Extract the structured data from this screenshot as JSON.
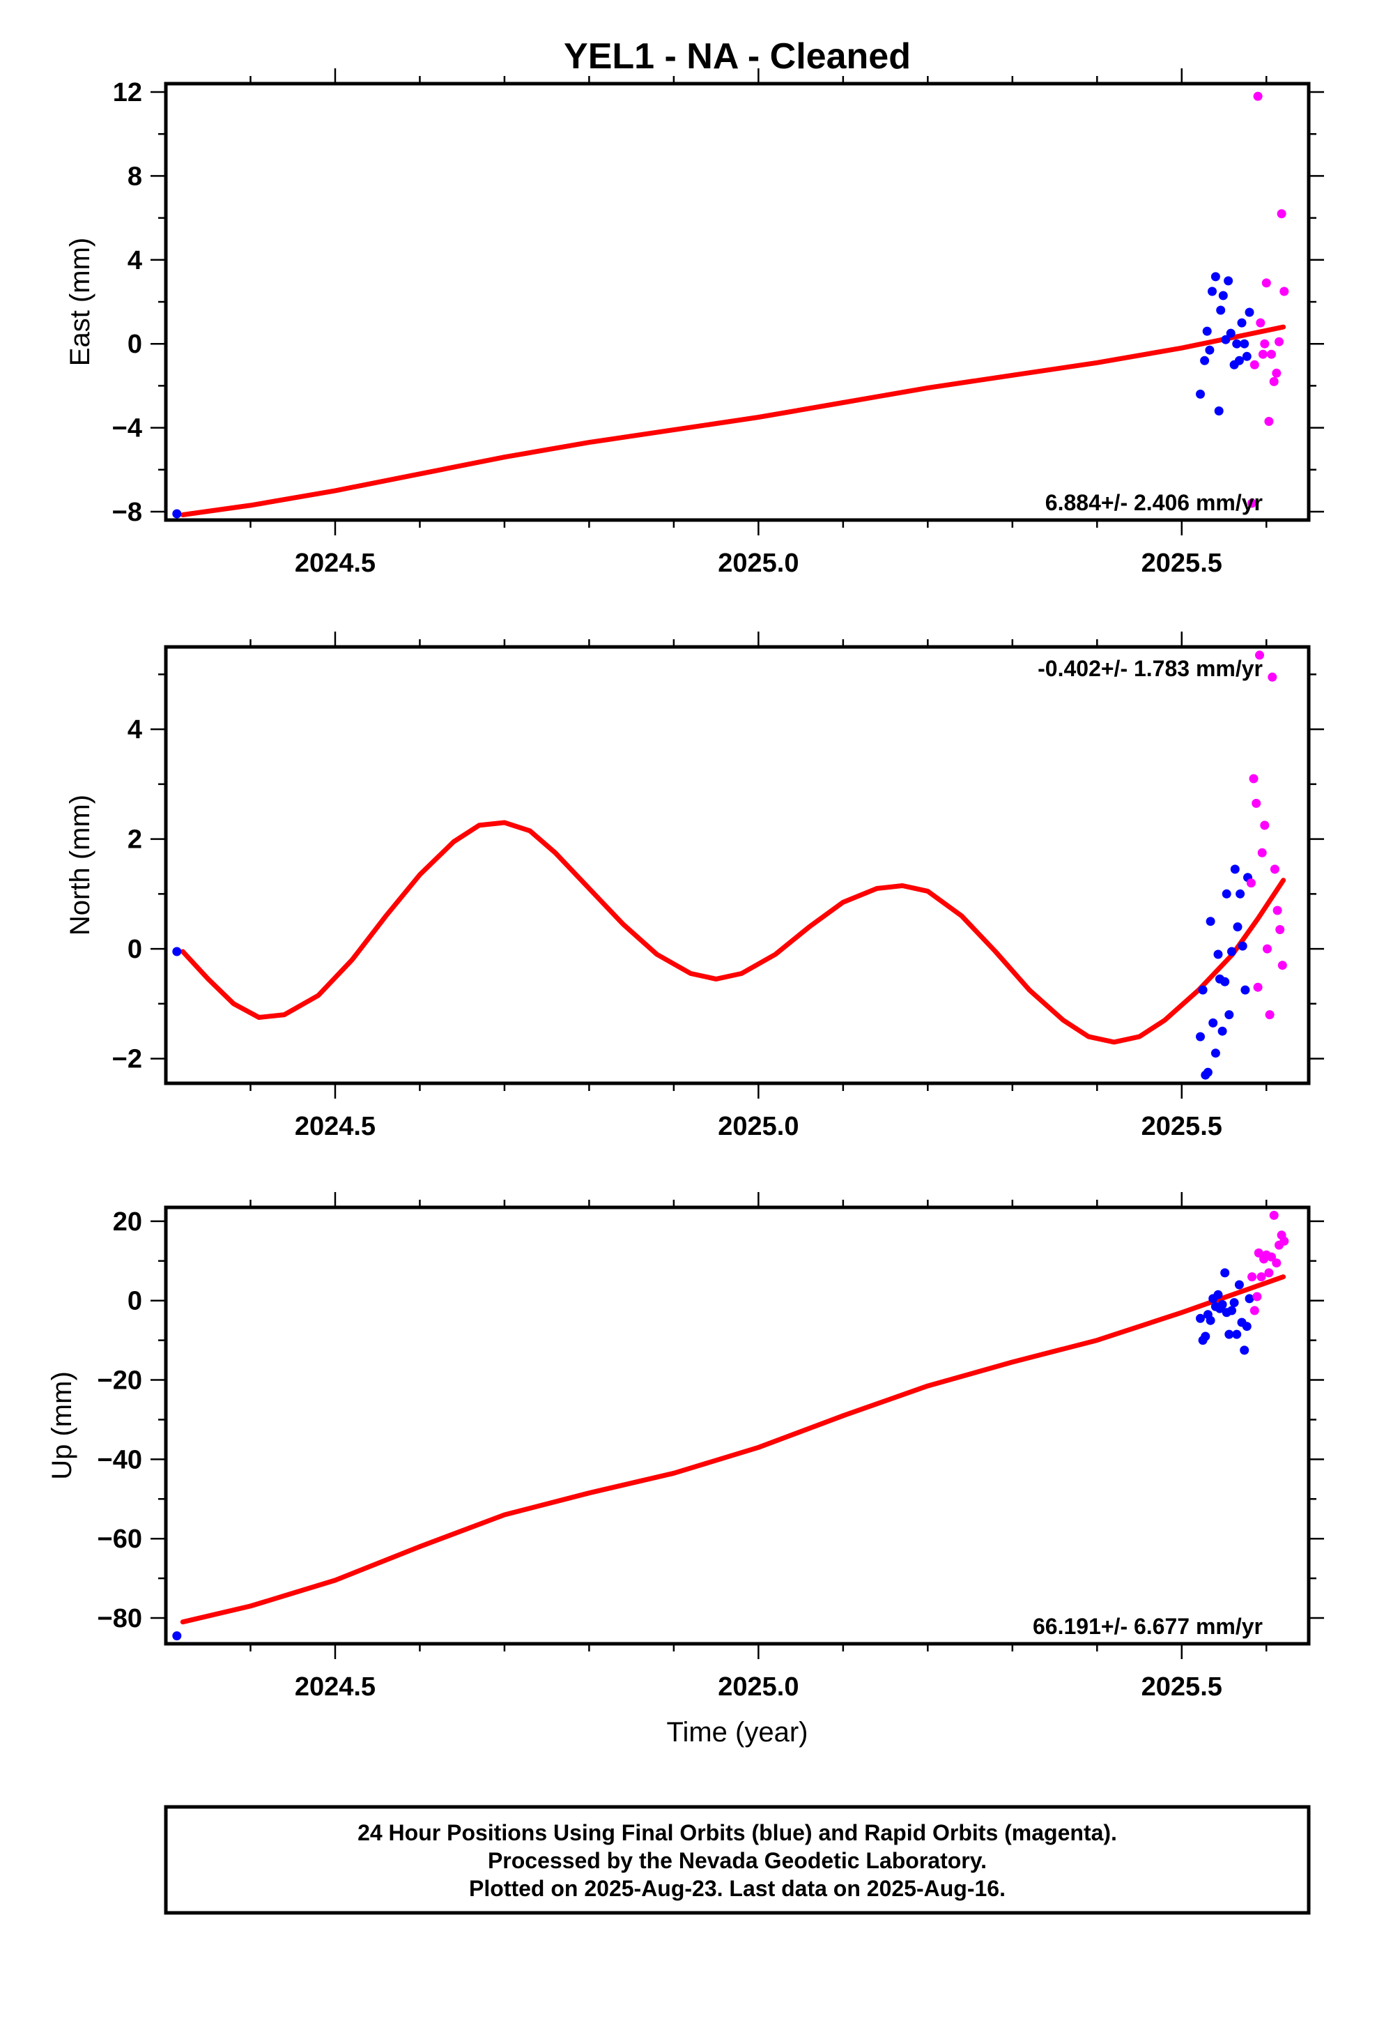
{
  "title": "YEL1  - NA - Cleaned",
  "colors": {
    "final": "#0000ff",
    "rapid": "#ff00ff",
    "model": "#ff0000",
    "axis": "#000000"
  },
  "footer": {
    "lines": [
      "24 Hour Positions Using Final Orbits (blue) and Rapid Orbits (magenta).",
      "Processed by the Nevada Geodetic Laboratory.",
      "Plotted on 2025-Aug-23. Last data on 2025-Aug-16."
    ]
  },
  "chart_data": [
    {
      "type": "scatter",
      "ylabel": "East (mm)",
      "xlabel": "",
      "xlim": [
        2024.3,
        2025.65
      ],
      "ylim": [
        -8.4,
        12.4
      ],
      "xticks": [
        2024.5,
        2025.0,
        2025.5
      ],
      "xtick_labels": [
        "2024.5",
        "2025.0",
        "2025.5"
      ],
      "yticks": [
        -8,
        -4,
        0,
        4,
        8,
        12
      ],
      "ytick_labels": [
        "−8",
        "−4",
        "0",
        "4",
        "8",
        "12"
      ],
      "rate_label": "6.884+/- 2.406 mm/yr",
      "rate_position": "bottom-right",
      "series": [
        {
          "kind": "final",
          "points": [
            [
              2024.313,
              -8.1
            ],
            [
              2025.522,
              -2.4
            ],
            [
              2025.527,
              -0.8
            ],
            [
              2025.53,
              0.6
            ],
            [
              2025.533,
              -0.3
            ],
            [
              2025.536,
              2.5
            ],
            [
              2025.54,
              3.2
            ],
            [
              2025.544,
              -3.2
            ],
            [
              2025.546,
              1.6
            ],
            [
              2025.549,
              2.3
            ],
            [
              2025.552,
              0.2
            ],
            [
              2025.555,
              3.0
            ],
            [
              2025.558,
              0.5
            ],
            [
              2025.562,
              -1.0
            ],
            [
              2025.565,
              0.0
            ],
            [
              2025.568,
              -0.8
            ],
            [
              2025.571,
              1.0
            ],
            [
              2025.574,
              0.0
            ],
            [
              2025.577,
              -0.6
            ],
            [
              2025.58,
              1.5
            ]
          ]
        },
        {
          "kind": "rapid",
          "points": [
            [
              2025.583,
              -7.6
            ],
            [
              2025.586,
              -1.0
            ],
            [
              2025.59,
              11.8
            ],
            [
              2025.593,
              1.0
            ],
            [
              2025.596,
              -0.5
            ],
            [
              2025.598,
              0.0
            ],
            [
              2025.6,
              2.9
            ],
            [
              2025.603,
              -3.7
            ],
            [
              2025.606,
              -0.5
            ],
            [
              2025.609,
              -1.8
            ],
            [
              2025.612,
              -1.4
            ],
            [
              2025.615,
              0.1
            ],
            [
              2025.618,
              6.2
            ],
            [
              2025.621,
              2.5
            ]
          ]
        }
      ],
      "model": [
        [
          2024.32,
          -8.15
        ],
        [
          2024.4,
          -7.7
        ],
        [
          2024.5,
          -7.0
        ],
        [
          2024.6,
          -6.2
        ],
        [
          2024.7,
          -5.4
        ],
        [
          2024.8,
          -4.7
        ],
        [
          2024.9,
          -4.1
        ],
        [
          2025.0,
          -3.5
        ],
        [
          2025.1,
          -2.8
        ],
        [
          2025.2,
          -2.1
        ],
        [
          2025.3,
          -1.5
        ],
        [
          2025.4,
          -0.9
        ],
        [
          2025.5,
          -0.2
        ],
        [
          2025.56,
          0.3
        ],
        [
          2025.62,
          0.8
        ]
      ]
    },
    {
      "type": "scatter",
      "ylabel": "North (mm)",
      "xlabel": "",
      "xlim": [
        2024.3,
        2025.65
      ],
      "ylim": [
        -2.45,
        5.5
      ],
      "xticks": [
        2024.5,
        2025.0,
        2025.5
      ],
      "xtick_labels": [
        "2024.5",
        "2025.0",
        "2025.5"
      ],
      "yticks": [
        -2,
        0,
        2,
        4
      ],
      "ytick_labels": [
        "−2",
        "0",
        "2",
        "4"
      ],
      "rate_label": "-0.402+/- 1.783 mm/yr",
      "rate_position": "top-right",
      "series": [
        {
          "kind": "final",
          "points": [
            [
              2024.313,
              -0.05
            ],
            [
              2025.522,
              -1.6
            ],
            [
              2025.525,
              -0.75
            ],
            [
              2025.528,
              -2.3
            ],
            [
              2025.531,
              -2.25
            ],
            [
              2025.534,
              0.5
            ],
            [
              2025.537,
              -1.35
            ],
            [
              2025.54,
              -1.9
            ],
            [
              2025.543,
              -0.1
            ],
            [
              2025.545,
              -0.55
            ],
            [
              2025.548,
              -1.5
            ],
            [
              2025.551,
              -0.6
            ],
            [
              2025.553,
              1.0
            ],
            [
              2025.556,
              -1.2
            ],
            [
              2025.559,
              -0.05
            ],
            [
              2025.563,
              1.45
            ],
            [
              2025.566,
              0.4
            ],
            [
              2025.569,
              1.0
            ],
            [
              2025.572,
              0.05
            ],
            [
              2025.575,
              -0.75
            ],
            [
              2025.578,
              1.3
            ]
          ]
        },
        {
          "kind": "rapid",
          "points": [
            [
              2025.582,
              1.2
            ],
            [
              2025.585,
              3.1
            ],
            [
              2025.588,
              2.65
            ],
            [
              2025.59,
              -0.7
            ],
            [
              2025.592,
              5.35
            ],
            [
              2025.595,
              1.75
            ],
            [
              2025.598,
              2.25
            ],
            [
              2025.601,
              0.0
            ],
            [
              2025.604,
              -1.2
            ],
            [
              2025.607,
              4.95
            ],
            [
              2025.61,
              1.45
            ],
            [
              2025.613,
              0.7
            ],
            [
              2025.616,
              0.35
            ],
            [
              2025.619,
              -0.3
            ]
          ]
        }
      ],
      "model": [
        [
          2024.32,
          -0.05
        ],
        [
          2024.35,
          -0.55
        ],
        [
          2024.38,
          -1.0
        ],
        [
          2024.41,
          -1.25
        ],
        [
          2024.44,
          -1.2
        ],
        [
          2024.48,
          -0.85
        ],
        [
          2024.52,
          -0.2
        ],
        [
          2024.56,
          0.6
        ],
        [
          2024.6,
          1.35
        ],
        [
          2024.64,
          1.95
        ],
        [
          2024.67,
          2.25
        ],
        [
          2024.7,
          2.3
        ],
        [
          2024.73,
          2.15
        ],
        [
          2024.76,
          1.75
        ],
        [
          2024.8,
          1.1
        ],
        [
          2024.84,
          0.45
        ],
        [
          2024.88,
          -0.1
        ],
        [
          2024.92,
          -0.45
        ],
        [
          2024.95,
          -0.55
        ],
        [
          2024.98,
          -0.45
        ],
        [
          2025.02,
          -0.1
        ],
        [
          2025.06,
          0.4
        ],
        [
          2025.1,
          0.85
        ],
        [
          2025.14,
          1.1
        ],
        [
          2025.17,
          1.15
        ],
        [
          2025.2,
          1.05
        ],
        [
          2025.24,
          0.6
        ],
        [
          2025.28,
          -0.05
        ],
        [
          2025.32,
          -0.75
        ],
        [
          2025.36,
          -1.3
        ],
        [
          2025.39,
          -1.6
        ],
        [
          2025.42,
          -1.7
        ],
        [
          2025.45,
          -1.6
        ],
        [
          2025.48,
          -1.3
        ],
        [
          2025.52,
          -0.75
        ],
        [
          2025.56,
          -0.1
        ],
        [
          2025.59,
          0.55
        ],
        [
          2025.62,
          1.25
        ]
      ]
    },
    {
      "type": "scatter",
      "ylabel": "Up (mm)",
      "xlabel": "Time (year)",
      "xlim": [
        2024.3,
        2025.65
      ],
      "ylim": [
        -86.5,
        23.5
      ],
      "xticks": [
        2024.5,
        2025.0,
        2025.5
      ],
      "xtick_labels": [
        "2024.5",
        "2025.0",
        "2025.5"
      ],
      "yticks": [
        -80,
        -60,
        -40,
        -20,
        0,
        20
      ],
      "ytick_labels": [
        "−80",
        "−60",
        "−40",
        "−20",
        "0",
        "20"
      ],
      "rate_label": "66.191+/- 6.677 mm/yr",
      "rate_position": "bottom-right",
      "series": [
        {
          "kind": "final",
          "points": [
            [
              2024.313,
              -84.5
            ],
            [
              2025.522,
              -4.5
            ],
            [
              2025.525,
              -10.0
            ],
            [
              2025.528,
              -9.0
            ],
            [
              2025.531,
              -3.5
            ],
            [
              2025.534,
              -5.0
            ],
            [
              2025.537,
              0.5
            ],
            [
              2025.54,
              -1.5
            ],
            [
              2025.543,
              1.5
            ],
            [
              2025.545,
              -2.0
            ],
            [
              2025.548,
              -1.0
            ],
            [
              2025.551,
              7.0
            ],
            [
              2025.553,
              -3.0
            ],
            [
              2025.556,
              -8.5
            ],
            [
              2025.559,
              -2.5
            ],
            [
              2025.562,
              -0.5
            ],
            [
              2025.565,
              -8.5
            ],
            [
              2025.568,
              4.0
            ],
            [
              2025.571,
              -5.5
            ],
            [
              2025.574,
              -12.5
            ],
            [
              2025.577,
              -6.5
            ],
            [
              2025.58,
              0.5
            ]
          ]
        },
        {
          "kind": "rapid",
          "points": [
            [
              2025.583,
              6.0
            ],
            [
              2025.586,
              -2.5
            ],
            [
              2025.589,
              1.0
            ],
            [
              2025.591,
              12.0
            ],
            [
              2025.594,
              6.0
            ],
            [
              2025.597,
              10.5
            ],
            [
              2025.6,
              11.5
            ],
            [
              2025.603,
              7.0
            ],
            [
              2025.606,
              11.0
            ],
            [
              2025.609,
              21.5
            ],
            [
              2025.612,
              9.5
            ],
            [
              2025.615,
              14.0
            ],
            [
              2025.618,
              16.5
            ],
            [
              2025.621,
              15.0
            ]
          ]
        }
      ],
      "model": [
        [
          2024.32,
          -81.0
        ],
        [
          2024.4,
          -77.0
        ],
        [
          2024.5,
          -70.5
        ],
        [
          2024.6,
          -62.0
        ],
        [
          2024.7,
          -54.0
        ],
        [
          2024.8,
          -48.5
        ],
        [
          2024.9,
          -43.5
        ],
        [
          2025.0,
          -37.0
        ],
        [
          2025.1,
          -29.0
        ],
        [
          2025.2,
          -21.5
        ],
        [
          2025.3,
          -15.5
        ],
        [
          2025.4,
          -10.0
        ],
        [
          2025.5,
          -3.0
        ],
        [
          2025.56,
          1.5
        ],
        [
          2025.62,
          6.0
        ]
      ]
    }
  ]
}
